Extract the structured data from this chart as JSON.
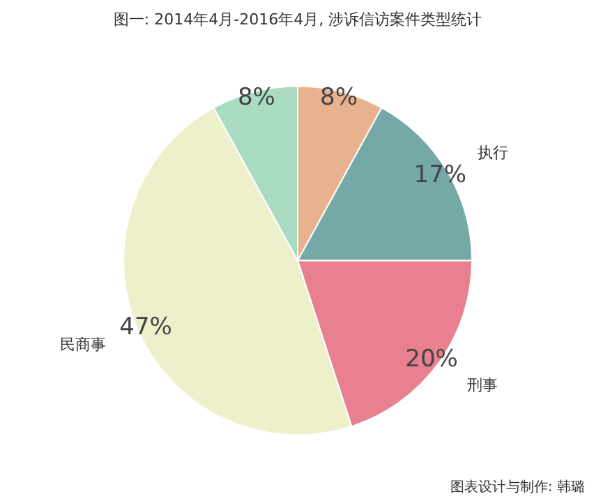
{
  "chart_data": {
    "type": "pie",
    "title": "图一: 2014年4月-2016年4月, 涉诉信访案件类型统计",
    "categories": [
      null,
      "执行",
      "刑事",
      "民商事",
      null
    ],
    "values": [
      8,
      17,
      20,
      47,
      8
    ],
    "colors": [
      "#e8b28e",
      "#74a9a8",
      "#e8808f",
      "#eef0cc",
      "#a9dcc2"
    ],
    "value_labels": [
      "8%",
      "17%",
      "20%",
      "47%",
      "8%"
    ],
    "annotations": [
      "图表设计与制作: 韩璐"
    ]
  }
}
